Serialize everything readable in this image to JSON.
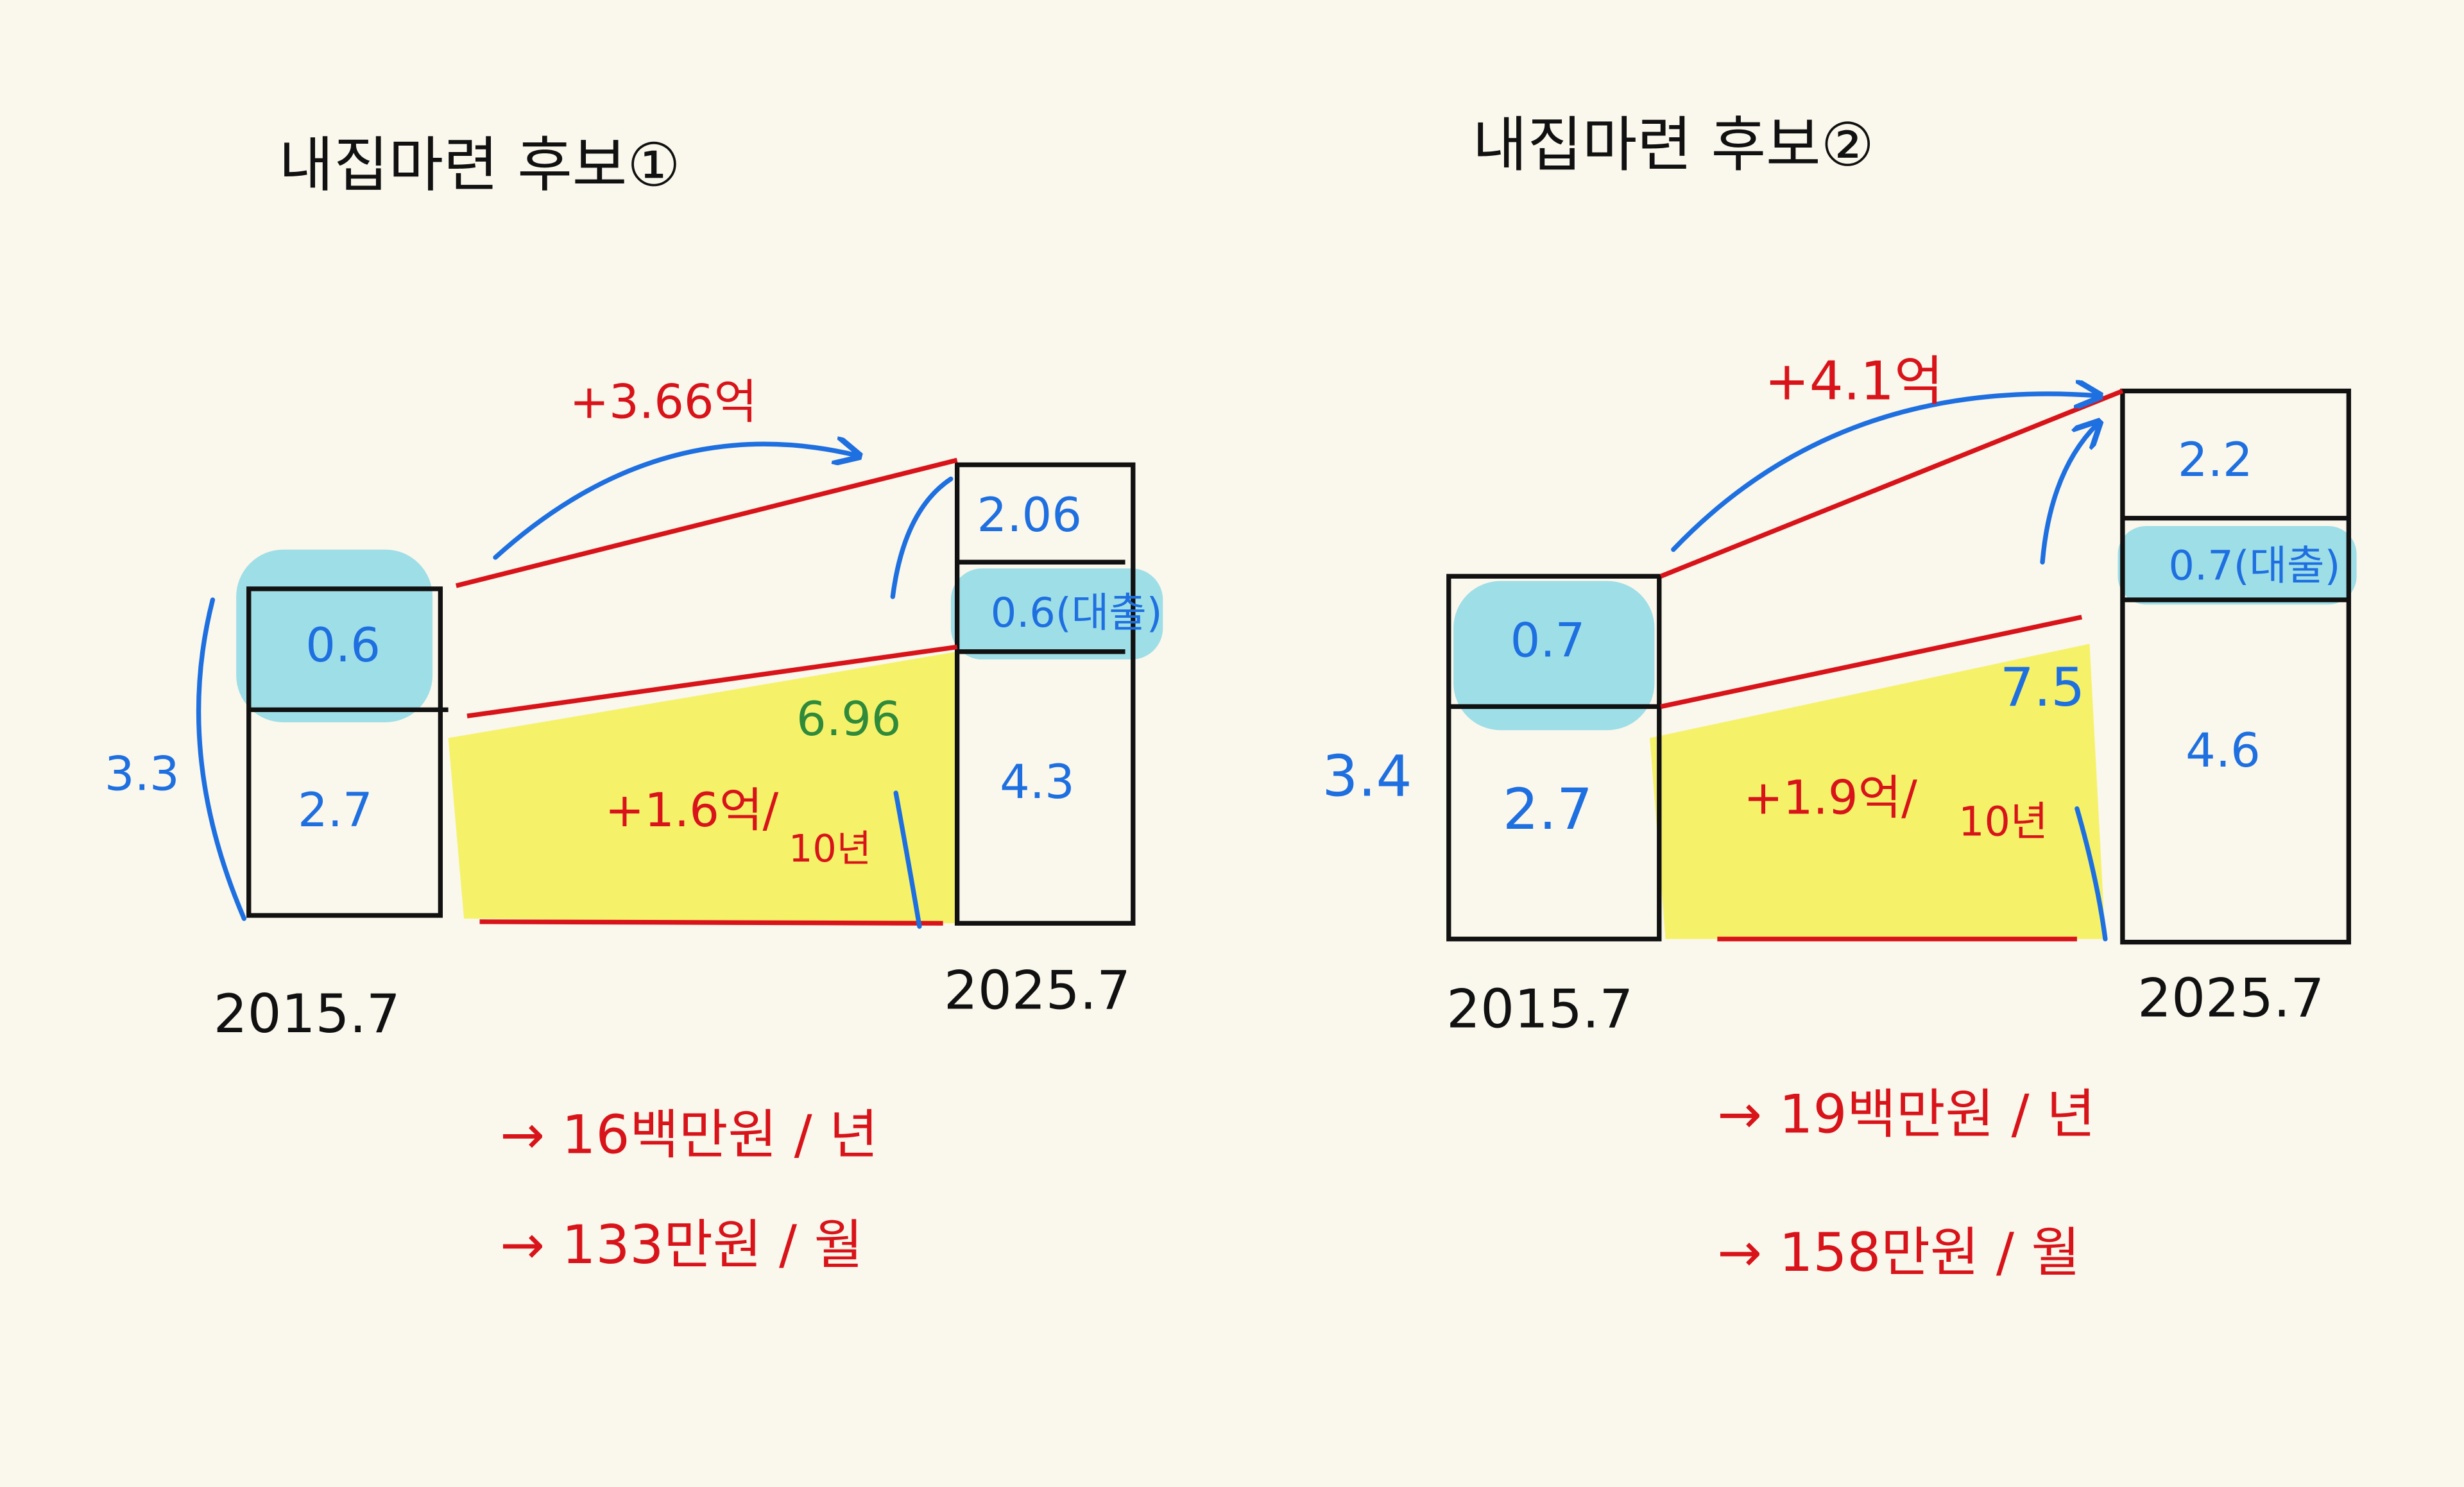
{
  "panels": [
    {
      "title": "내집마련 후보①",
      "total": "3.3",
      "arrow_label": "+3.66억",
      "side_label": "6.96",
      "gain": "+1.6억/",
      "period": "10년",
      "left": {
        "top": "0.6",
        "bottom": "2.7",
        "date": "2015.7"
      },
      "right": {
        "top": "2.06",
        "middle": "0.6(대출)",
        "bottom": "4.3",
        "date": "2025.7"
      },
      "notes": [
        "→ 16백만원 / 년",
        "→ 133만원 / 월"
      ]
    },
    {
      "title": "내집마련 후보②",
      "total": "3.4",
      "arrow_label": "+4.1억",
      "side_label": "7.5",
      "gain": "+1.9억/",
      "period": "10년",
      "left": {
        "top": "0.7",
        "bottom": "2.7",
        "date": "2015.7"
      },
      "right": {
        "top": "2.2",
        "middle": "0.7(대출)",
        "bottom": "4.6",
        "date": "2025.7"
      },
      "notes": [
        "→ 19백만원 / 년",
        "→ 158만원 / 월"
      ]
    }
  ]
}
